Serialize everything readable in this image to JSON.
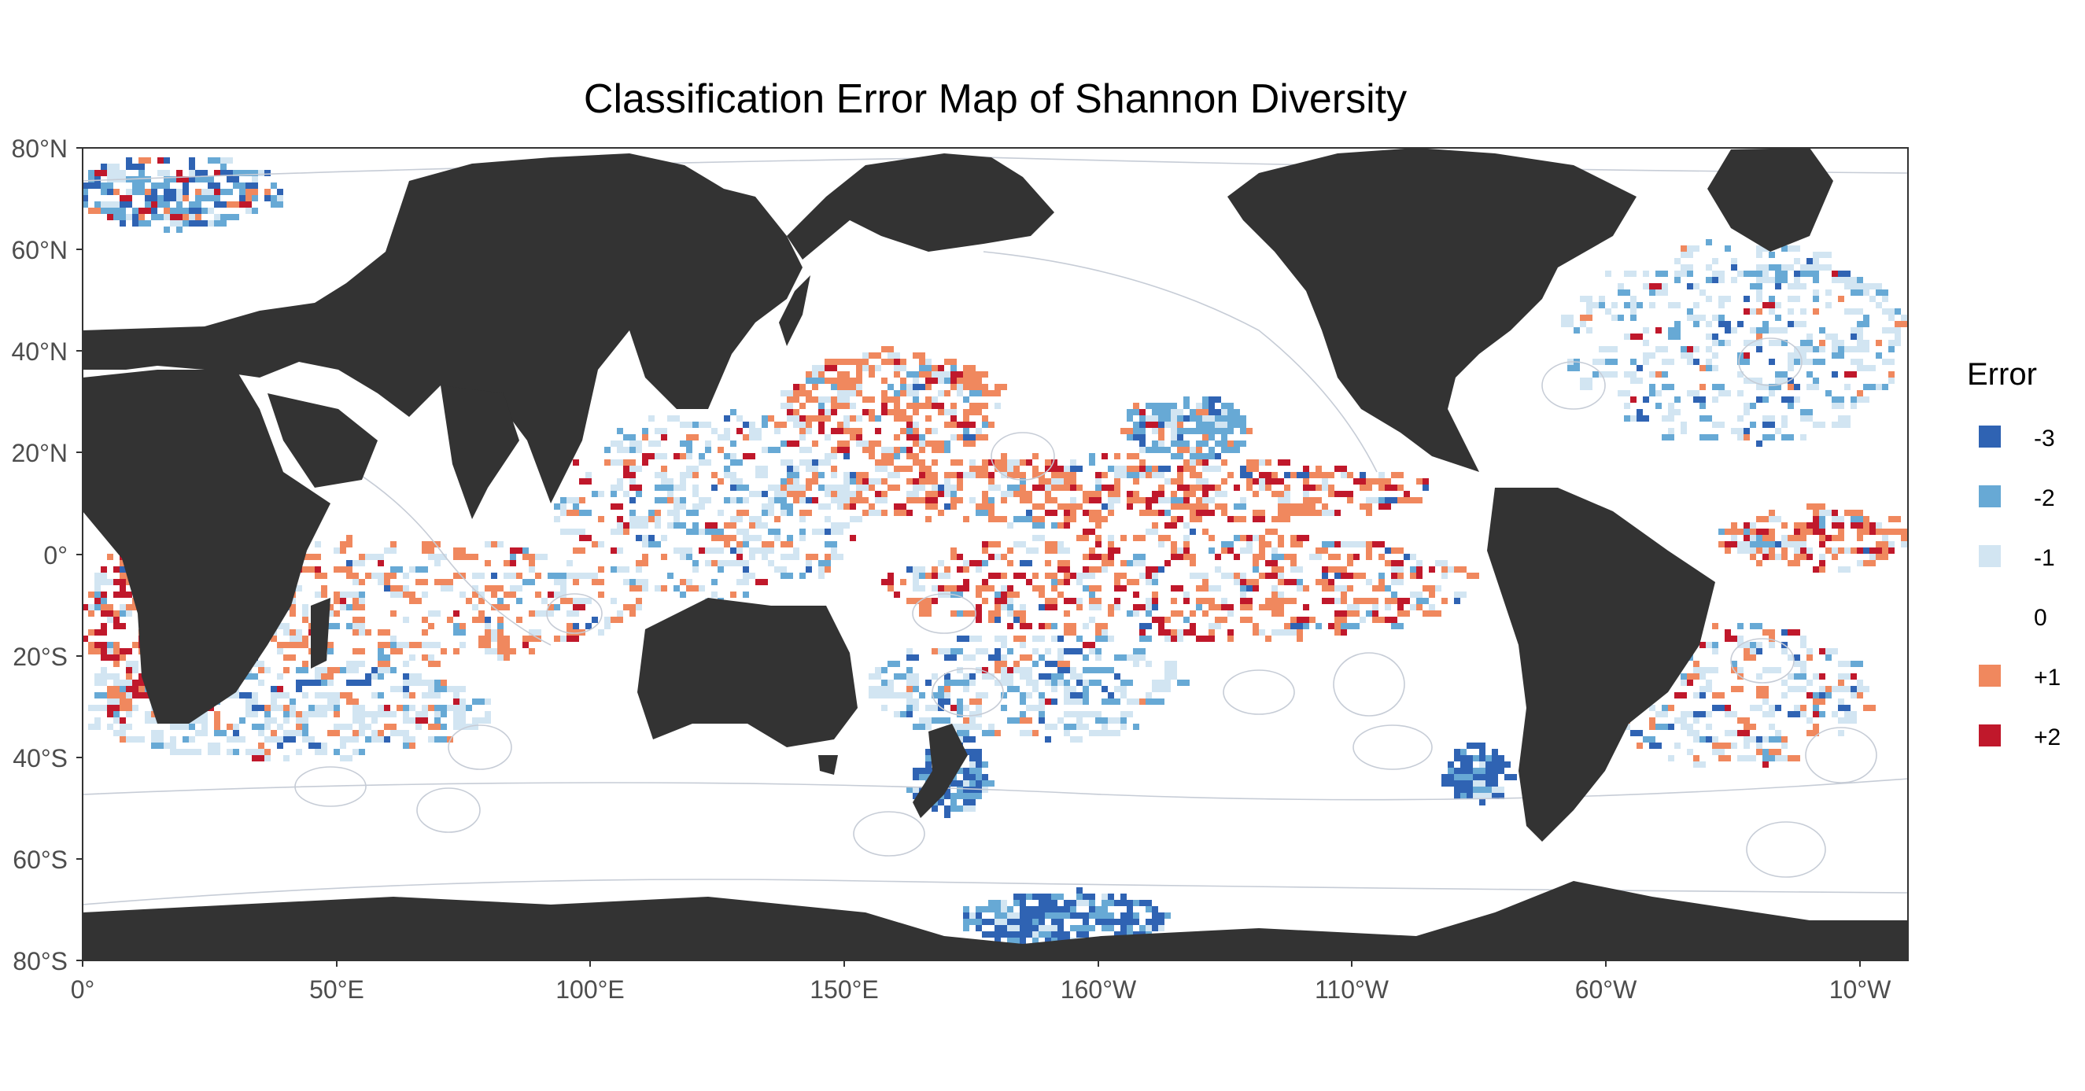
{
  "title": "Classification Error Map of Shannon Diversity",
  "y_axis_labels": [
    "80°N",
    "60°N",
    "40°N",
    "20°N",
    "0°",
    "20°S",
    "40°S",
    "60°S",
    "80°S"
  ],
  "x_axis_labels": [
    "0°",
    "50°E",
    "100°E",
    "150°E",
    "160°W",
    "110°W",
    "60°W",
    "10°W"
  ],
  "legend": {
    "title": "Error",
    "items": [
      {
        "label": "-3",
        "color": "#2f63b3"
      },
      {
        "label": "-2",
        "color": "#67a9d5"
      },
      {
        "label": "-1",
        "color": "#d2e5f2"
      },
      {
        "label": "0",
        "color": "#ffffff"
      },
      {
        "label": "+1",
        "color": "#f0885e"
      },
      {
        "label": "+2",
        "color": "#c0182b"
      }
    ]
  },
  "colors": {
    "land": "#333333",
    "ocean": "#ffffff",
    "province_lines": "#c6ccd6"
  }
}
